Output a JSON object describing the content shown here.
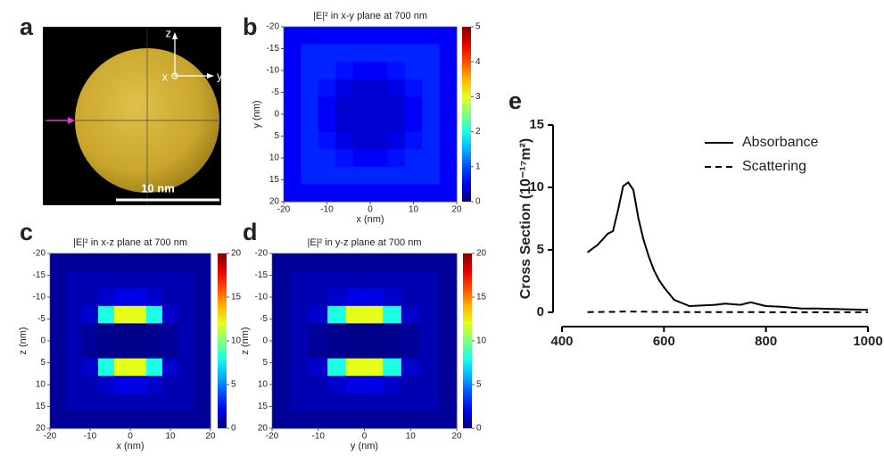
{
  "chart_data": [
    {
      "type": "render",
      "label": "a",
      "axes": {
        "z": "z",
        "x": "x",
        "y": "y"
      },
      "scale_bar": "10 nm"
    },
    {
      "type": "heatmap",
      "label": "b",
      "title": "|E|² in x-y plane at 700 nm",
      "x_label": "x (nm)",
      "y_label": "y (nm)",
      "xlim": [
        -20,
        20
      ],
      "xticks": [
        -20,
        -10,
        0,
        10,
        20
      ],
      "ylim": [
        20,
        -20
      ],
      "yticks": [
        -20,
        -15,
        -10,
        -5,
        0,
        5,
        10,
        15,
        20
      ],
      "clim": [
        0,
        5
      ],
      "cticks": [
        0,
        1,
        2,
        3,
        4,
        5
      ],
      "colormap": "jet",
      "values": [
        [
          0.6,
          0.6,
          0.6,
          0.6,
          0.6,
          0.6,
          0.6,
          0.6,
          0.6,
          0.6
        ],
        [
          0.6,
          0.8,
          0.8,
          0.8,
          0.8,
          0.8,
          0.8,
          0.8,
          0.8,
          0.6
        ],
        [
          0.6,
          0.8,
          0.8,
          0.7,
          0.6,
          0.6,
          0.7,
          0.8,
          0.8,
          0.6
        ],
        [
          0.6,
          0.8,
          0.7,
          0.5,
          0.4,
          0.4,
          0.5,
          0.7,
          0.8,
          0.6
        ],
        [
          0.6,
          0.8,
          0.6,
          0.4,
          0.4,
          0.4,
          0.4,
          0.6,
          0.8,
          0.6
        ],
        [
          0.6,
          0.8,
          0.6,
          0.4,
          0.4,
          0.4,
          0.4,
          0.6,
          0.8,
          0.6
        ],
        [
          0.6,
          0.8,
          0.7,
          0.5,
          0.4,
          0.4,
          0.5,
          0.7,
          0.8,
          0.6
        ],
        [
          0.6,
          0.8,
          0.8,
          0.7,
          0.6,
          0.6,
          0.7,
          0.8,
          0.8,
          0.6
        ],
        [
          0.6,
          0.8,
          0.8,
          0.8,
          0.8,
          0.8,
          0.8,
          0.8,
          0.8,
          0.6
        ],
        [
          0.6,
          0.6,
          0.6,
          0.6,
          0.6,
          0.6,
          0.6,
          0.6,
          0.6,
          0.6
        ]
      ]
    },
    {
      "type": "heatmap",
      "label": "c",
      "title": "|E|² in x-z plane at 700 nm",
      "x_label": "x (nm)",
      "y_label": "z (nm)",
      "xlim": [
        -20,
        20
      ],
      "xticks": [
        -20,
        -10,
        0,
        10,
        20
      ],
      "ylim": [
        20,
        -20
      ],
      "yticks": [
        -20,
        -15,
        -10,
        -5,
        0,
        5,
        10,
        15,
        20
      ],
      "clim": [
        0,
        20
      ],
      "cticks": [
        0,
        5,
        10,
        15,
        20
      ],
      "colormap": "jet",
      "values": [
        [
          0.5,
          0.5,
          0.5,
          0.5,
          0.5,
          0.5,
          0.5,
          0.5,
          0.5,
          0.5
        ],
        [
          0.5,
          1,
          1,
          1,
          1,
          1,
          1,
          1,
          1,
          0.5
        ],
        [
          0.5,
          1,
          1,
          1.5,
          2,
          2,
          1.5,
          1,
          1,
          0.5
        ],
        [
          0.5,
          1,
          1.5,
          8,
          12,
          12,
          8,
          1.5,
          1,
          0.5
        ],
        [
          0.5,
          1,
          0.5,
          0.3,
          0.2,
          0.2,
          0.3,
          0.5,
          1,
          0.5
        ],
        [
          0.5,
          1,
          0.5,
          0.3,
          0.2,
          0.2,
          0.3,
          0.5,
          1,
          0.5
        ],
        [
          0.5,
          1,
          1.5,
          8,
          12,
          12,
          8,
          1.5,
          1,
          0.5
        ],
        [
          0.5,
          1,
          1,
          1.5,
          2,
          2,
          1.5,
          1,
          1,
          0.5
        ],
        [
          0.5,
          1,
          1,
          1,
          1,
          1,
          1,
          1,
          1,
          0.5
        ],
        [
          0.5,
          0.5,
          0.5,
          0.5,
          0.5,
          0.5,
          0.5,
          0.5,
          0.5,
          0.5
        ]
      ]
    },
    {
      "type": "heatmap",
      "label": "d",
      "title": "|E|² in y-z plane at 700 nm",
      "x_label": "y (nm)",
      "y_label": "z (nm)",
      "xlim": [
        -20,
        20
      ],
      "xticks": [
        -20,
        -10,
        0,
        10,
        20
      ],
      "ylim": [
        20,
        -20
      ],
      "yticks": [
        -20,
        -15,
        -10,
        -5,
        0,
        5,
        10,
        15,
        20
      ],
      "clim": [
        0,
        20
      ],
      "cticks": [
        0,
        5,
        10,
        15,
        20
      ],
      "colormap": "jet",
      "values": [
        [
          0.5,
          0.5,
          0.5,
          0.5,
          0.5,
          0.5,
          0.5,
          0.5,
          0.5,
          0.5
        ],
        [
          0.5,
          1,
          1,
          1,
          1,
          1,
          1,
          1,
          1,
          0.5
        ],
        [
          0.5,
          1,
          1,
          1.5,
          2,
          2,
          1.5,
          1,
          1,
          0.5
        ],
        [
          0.5,
          1,
          1.5,
          8,
          12,
          12,
          8,
          1.5,
          1,
          0.5
        ],
        [
          0.5,
          1,
          0.5,
          0.3,
          0.2,
          0.2,
          0.3,
          0.5,
          1,
          0.5
        ],
        [
          0.5,
          1,
          0.5,
          0.3,
          0.2,
          0.2,
          0.3,
          0.5,
          1,
          0.5
        ],
        [
          0.5,
          1,
          1.5,
          8,
          12,
          12,
          8,
          1.5,
          1,
          0.5
        ],
        [
          0.5,
          1,
          1,
          1.5,
          2,
          2,
          1.5,
          1,
          1,
          0.5
        ],
        [
          0.5,
          1,
          1,
          1,
          1,
          1,
          1,
          1,
          1,
          0.5
        ],
        [
          0.5,
          0.5,
          0.5,
          0.5,
          0.5,
          0.5,
          0.5,
          0.5,
          0.5,
          0.5
        ]
      ]
    },
    {
      "type": "line",
      "label": "e",
      "y_label": "Cross Section (10⁻¹⁷m²)",
      "xlim": [
        400,
        1000
      ],
      "xticks": [
        400,
        600,
        800,
        1000
      ],
      "ylim": [
        0,
        15
      ],
      "yticks": [
        0,
        5,
        10,
        15
      ],
      "legend": "upper right",
      "x": [
        450,
        470,
        490,
        500,
        510,
        520,
        530,
        540,
        550,
        560,
        570,
        580,
        590,
        600,
        620,
        650,
        700,
        720,
        750,
        770,
        800,
        830,
        870,
        900,
        1000
      ],
      "series": [
        {
          "name": "Absorbance",
          "color": "#000000",
          "dash": "solid",
          "values": [
            4.8,
            5.4,
            6.3,
            6.5,
            8.2,
            10.1,
            10.4,
            9.8,
            7.5,
            5.8,
            4.5,
            3.4,
            2.6,
            2.0,
            1.0,
            0.5,
            0.6,
            0.7,
            0.6,
            0.8,
            0.5,
            0.45,
            0.3,
            0.3,
            0.2
          ]
        },
        {
          "name": "Scattering",
          "color": "#000000",
          "dash": "dashed",
          "values": [
            0.02,
            0.03,
            0.04,
            0.04,
            0.05,
            0.06,
            0.06,
            0.06,
            0.05,
            0.05,
            0.04,
            0.04,
            0.03,
            0.03,
            0.02,
            0.02,
            0.02,
            0.02,
            0.02,
            0.02,
            0.01,
            0.01,
            0.01,
            0.01,
            0.01
          ]
        }
      ]
    }
  ]
}
